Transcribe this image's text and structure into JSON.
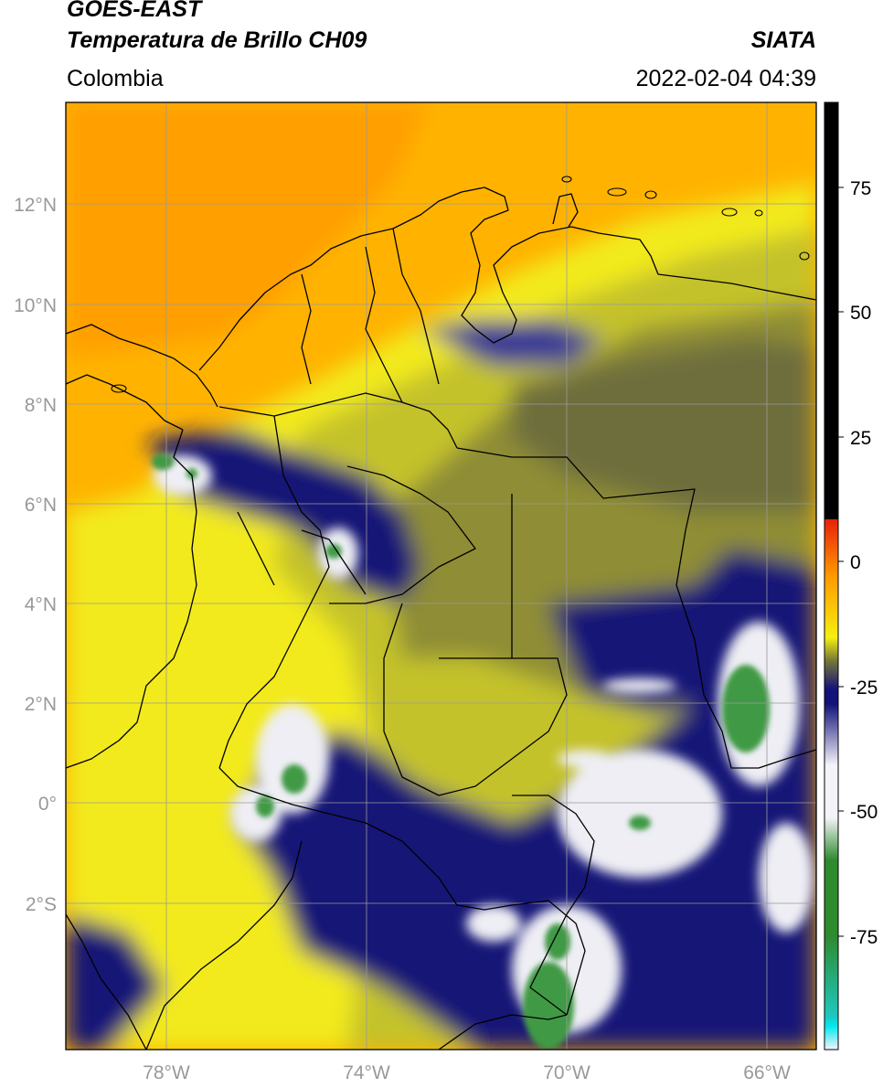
{
  "header": {
    "satellite": "GOES-EAST",
    "product": "Temperatura de Brillo CH09",
    "region": "Colombia",
    "agency": "SIATA",
    "datetime": "2022-02-04 04:39"
  },
  "axes": {
    "lat_ticks": [
      "12°N",
      "10°N",
      "8°N",
      "6°N",
      "4°N",
      "2°N",
      "0°",
      "2°S"
    ],
    "lon_ticks": [
      "78°W",
      "74°W",
      "70°W",
      "66°W"
    ]
  },
  "colorbar": {
    "ticks": [
      "75",
      "50",
      "25",
      "0",
      "-25",
      "-50",
      "-75"
    ],
    "colors": {
      "top": "#000000",
      "red": "#e8200a",
      "orange": "#ff9a00",
      "yellow": "#f5ef10",
      "olive": "#74743a",
      "navy": "#12127a",
      "white": "#f4f4f8",
      "green": "#2e8b2e",
      "teal": "#1ec8c0",
      "cyan": "#00e8f0"
    }
  },
  "map_colors": {
    "warm_orange": "#ff9f00",
    "orange_light": "#ffb300",
    "yellow": "#f2ea1a",
    "yellow_olive": "#c4c22c",
    "olive": "#8f8d34",
    "olive_dark": "#6e6e3c",
    "navy": "#141477",
    "navy_mid": "#3a3a95",
    "white_cloud": "#eeeef4",
    "green": "#3f9a45",
    "border": "#000000",
    "grid": "#9a9a9a"
  }
}
